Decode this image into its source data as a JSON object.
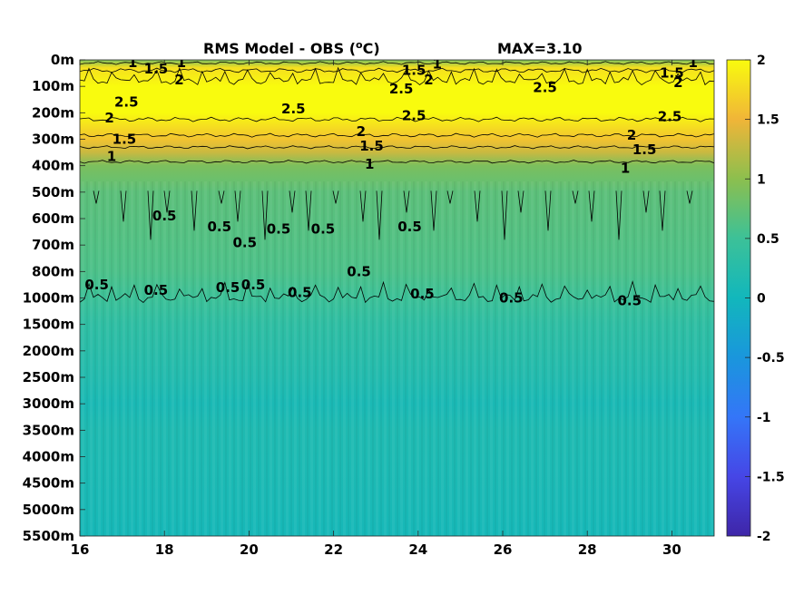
{
  "chart_data": {
    "type": "heatmap",
    "title": "RMS Model - OBS (",
    "title_unit_sup": "o",
    "title_unit_tail": "C)",
    "max_label": "MAX=3.10",
    "x_ticks": [
      "16",
      "18",
      "20",
      "22",
      "24",
      "26",
      "28",
      "30"
    ],
    "x_values": [
      16,
      18,
      20,
      22,
      24,
      26,
      28,
      30
    ],
    "xlim": [
      16,
      31
    ],
    "y_ticks": [
      "0m",
      "100m",
      "200m",
      "300m",
      "400m",
      "500m",
      "600m",
      "700m",
      "800m",
      "1000m",
      "1500m",
      "2000m",
      "2500m",
      "3000m",
      "3500m",
      "4000m",
      "4500m",
      "5000m",
      "5500m"
    ],
    "colorbar_ticks": [
      "2",
      "1.5",
      "1",
      "0.5",
      "0",
      "-0.5",
      "-1",
      "-1.5",
      "-2"
    ],
    "colorbar_values": [
      2,
      1.5,
      1,
      0.5,
      0,
      -0.5,
      -1,
      -1.5,
      -2
    ],
    "clim": [
      -2,
      2
    ],
    "colors": {
      "yellow": "#f9fb0e",
      "orange": "#f5b43a",
      "green": "#8cbf4e",
      "teal": "#3fc19c",
      "cyan": "#17bcb6",
      "blue": "#3d78f0",
      "dark": "#3e26a8"
    },
    "depth_profile": [
      {
        "level": 0,
        "value": 0.9
      },
      {
        "level": 0.3,
        "value": 1.8
      },
      {
        "level": 1,
        "value": 2.8
      },
      {
        "level": 2,
        "value": 2.7
      },
      {
        "level": 3,
        "value": 1.6
      },
      {
        "level": 3.5,
        "value": 1.3
      },
      {
        "level": 4,
        "value": 0.9
      },
      {
        "level": 5,
        "value": 0.7
      },
      {
        "level": 8,
        "value": 0.6
      },
      {
        "level": 9,
        "value": 0.5
      },
      {
        "level": 10,
        "value": 0.35
      },
      {
        "level": 12,
        "value": 0.2
      },
      {
        "level": 13,
        "value": 0.1
      },
      {
        "level": 14,
        "value": 0.15
      },
      {
        "level": 17,
        "value": 0.08
      },
      {
        "level": 18,
        "value": 0.05
      }
    ],
    "contour_labels": [
      {
        "text": "1",
        "x": 17.25,
        "level": 0.1
      },
      {
        "text": "1.5",
        "x": 17.8,
        "level": 0.35
      },
      {
        "text": "1",
        "x": 18.4,
        "level": 0.1
      },
      {
        "text": "2",
        "x": 18.35,
        "level": 0.75
      },
      {
        "text": "2.5",
        "x": 17.1,
        "level": 1.6
      },
      {
        "text": "2",
        "x": 16.7,
        "level": 2.2
      },
      {
        "text": "1.5",
        "x": 17.05,
        "level": 3.0
      },
      {
        "text": "1",
        "x": 16.75,
        "level": 3.65
      },
      {
        "text": "2.5",
        "x": 21.05,
        "level": 1.85
      },
      {
        "text": "2",
        "x": 22.65,
        "level": 2.7
      },
      {
        "text": "1.5",
        "x": 22.9,
        "level": 3.25
      },
      {
        "text": "1",
        "x": 22.85,
        "level": 3.95
      },
      {
        "text": "1.5",
        "x": 23.9,
        "level": 0.4
      },
      {
        "text": "1",
        "x": 24.45,
        "level": 0.15
      },
      {
        "text": "2",
        "x": 24.25,
        "level": 0.75
      },
      {
        "text": "2.5",
        "x": 23.6,
        "level": 1.1
      },
      {
        "text": "2.5",
        "x": 23.9,
        "level": 2.1
      },
      {
        "text": "2.5",
        "x": 27.0,
        "level": 1.05
      },
      {
        "text": "2.5",
        "x": 29.95,
        "level": 2.15
      },
      {
        "text": "1.5",
        "x": 30.0,
        "level": 0.5
      },
      {
        "text": "1",
        "x": 30.5,
        "level": 0.1
      },
      {
        "text": "2",
        "x": 30.15,
        "level": 0.85
      },
      {
        "text": "2",
        "x": 29.05,
        "level": 2.85
      },
      {
        "text": "1.5",
        "x": 29.35,
        "level": 3.4
      },
      {
        "text": "1",
        "x": 28.9,
        "level": 4.1
      },
      {
        "text": "0.5",
        "x": 16.4,
        "level": 8.5
      },
      {
        "text": "0.5",
        "x": 17.8,
        "level": 8.7
      },
      {
        "text": "0.5",
        "x": 19.5,
        "level": 8.6
      },
      {
        "text": "0.5",
        "x": 18.0,
        "level": 5.9
      },
      {
        "text": "0.5",
        "x": 19.3,
        "level": 6.3
      },
      {
        "text": "0.5",
        "x": 20.7,
        "level": 6.4
      },
      {
        "text": "0.5",
        "x": 21.75,
        "level": 6.4
      },
      {
        "text": "0.5",
        "x": 23.8,
        "level": 6.3
      },
      {
        "text": "0.5",
        "x": 19.9,
        "level": 6.9
      },
      {
        "text": "0.5",
        "x": 20.1,
        "level": 8.5
      },
      {
        "text": "0.5",
        "x": 21.2,
        "level": 8.8
      },
      {
        "text": "0.5",
        "x": 22.6,
        "level": 8.0
      },
      {
        "text": "0.5",
        "x": 24.1,
        "level": 8.85
      },
      {
        "text": "0.5",
        "x": 26.2,
        "level": 9.0
      },
      {
        "text": "0.5",
        "x": 29.0,
        "level": 9.1
      }
    ]
  }
}
